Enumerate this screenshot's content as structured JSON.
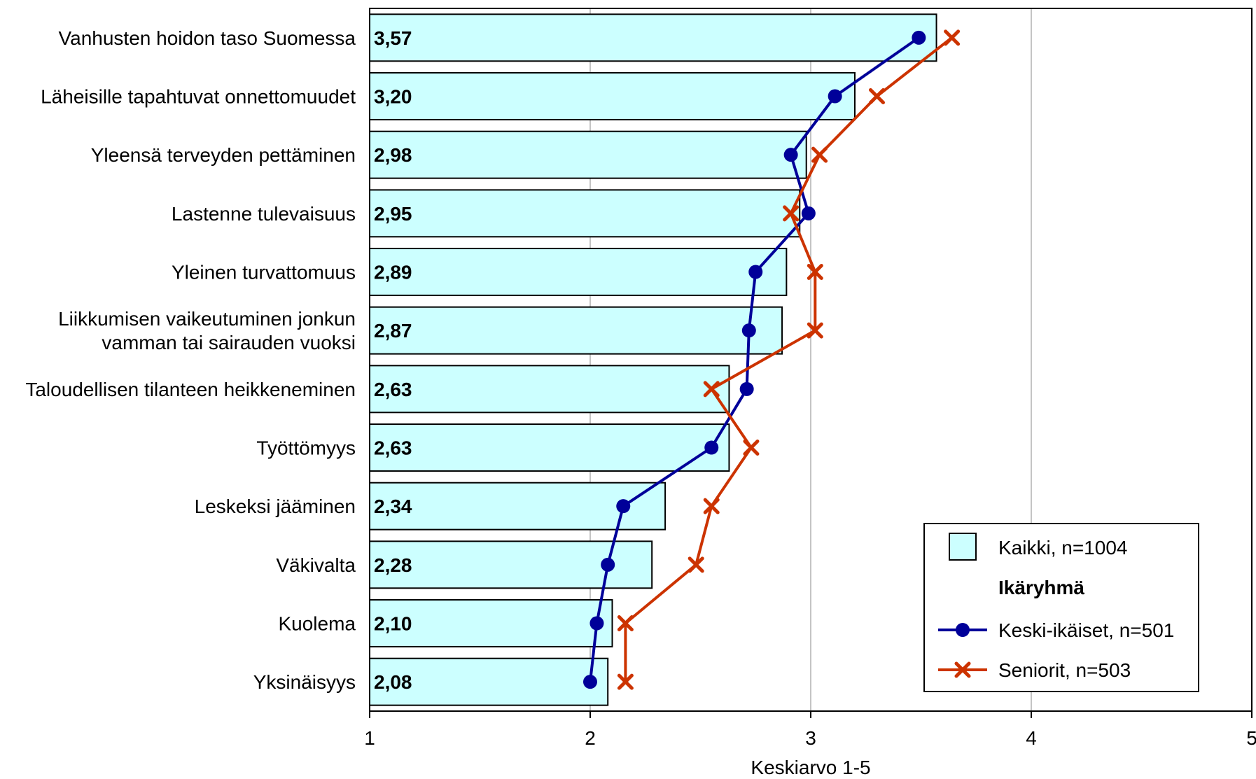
{
  "chart_data": {
    "type": "bar",
    "orientation": "horizontal",
    "categories": [
      "Vanhusten hoidon taso Suomessa",
      "Läheisille tapahtuvat onnettomuudet",
      "Yleensä terveyden pettäminen",
      "Lastenne tulevaisuus",
      "Yleinen turvattomuus",
      "Liikkumisen vaikeutuminen jonkun vamman tai sairauden vuoksi",
      "Taloudellisen tilanteen heikkeneminen",
      "Työttömyys",
      "Leskeksi jääminen",
      "Väkivalta",
      "Kuolema",
      "Yksinäisyys"
    ],
    "category_lines": [
      [
        "Vanhusten hoidon taso Suomessa"
      ],
      [
        "Läheisille tapahtuvat onnettomuudet"
      ],
      [
        "Yleensä terveyden pettäminen"
      ],
      [
        "Lastenne tulevaisuus"
      ],
      [
        "Yleinen turvattomuus"
      ],
      [
        "Liikkumisen vaikeutuminen jonkun",
        "vamman tai sairauden vuoksi"
      ],
      [
        "Taloudellisen tilanteen heikkeneminen"
      ],
      [
        "Työttömyys"
      ],
      [
        "Leskeksi jääminen"
      ],
      [
        "Väkivalta"
      ],
      [
        "Kuolema"
      ],
      [
        "Yksinäisyys"
      ]
    ],
    "series": [
      {
        "name": "Kaikki, n=1004",
        "kind": "bar",
        "color": "#ccffff",
        "values": [
          3.57,
          3.2,
          2.98,
          2.95,
          2.89,
          2.87,
          2.63,
          2.63,
          2.34,
          2.28,
          2.1,
          2.08
        ],
        "value_labels": [
          "3,57",
          "3,20",
          "2,98",
          "2,95",
          "2,89",
          "2,87",
          "2,63",
          "2,63",
          "2,34",
          "2,28",
          "2,10",
          "2,08"
        ]
      },
      {
        "name": "Keski-ikäiset, n=501",
        "kind": "line",
        "marker": "circle",
        "color": "#000099",
        "values": [
          3.49,
          3.11,
          2.91,
          2.99,
          2.75,
          2.72,
          2.71,
          2.55,
          2.15,
          2.08,
          2.03,
          2.0
        ]
      },
      {
        "name": "Seniorit, n=503",
        "kind": "line",
        "marker": "x",
        "color": "#cc3300",
        "values": [
          3.64,
          3.3,
          3.04,
          2.91,
          3.02,
          3.02,
          2.55,
          2.73,
          2.55,
          2.48,
          2.16,
          2.16
        ]
      }
    ],
    "xlim": [
      1,
      5
    ],
    "xticks": [
      "1",
      "2",
      "3",
      "4",
      "5"
    ],
    "xlabel": "Keskiarvo 1-5",
    "grid": true,
    "legend": {
      "placement": "bottom-right",
      "group_title": "Ikäryhmä"
    }
  }
}
